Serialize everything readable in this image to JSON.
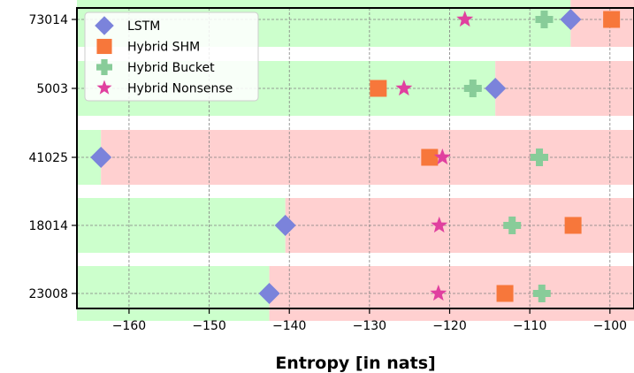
{
  "chart_data": {
    "type": "scatter",
    "xlabel": "Entropy [in nats]",
    "ylabel": "",
    "xlim": [
      -166.5,
      -97
    ],
    "x_ticks": [
      -160,
      -150,
      -140,
      -130,
      -120,
      -110,
      -100
    ],
    "categories": [
      "73014",
      "5003",
      "41025",
      "18014",
      "23008"
    ],
    "grid": true,
    "legend_position": "top-left",
    "band_colors": {
      "below": "#ccffcc",
      "above": "#ffd0d0"
    },
    "band_split": [
      -104.9,
      -114.3,
      -163.5,
      -140.5,
      -142.5
    ],
    "series": [
      {
        "name": "LSTM",
        "marker": "diamond",
        "color": "#7b83db",
        "values": [
          -104.9,
          -114.3,
          -163.5,
          -140.5,
          -142.5
        ]
      },
      {
        "name": "Hybrid SHM",
        "marker": "square",
        "color": "#f7773b",
        "values": [
          -99.8,
          -128.9,
          -122.5,
          -104.6,
          -113.1
        ]
      },
      {
        "name": "Hybrid Bucket",
        "marker": "plus",
        "color": "#88cc99",
        "values": [
          -108.2,
          -117.1,
          -108.8,
          -112.2,
          -108.5
        ]
      },
      {
        "name": "Hybrid Nonsense",
        "marker": "star",
        "color": "#e0409f",
        "values": [
          -118.1,
          -125.7,
          -120.9,
          -121.3,
          -121.4
        ]
      }
    ]
  }
}
